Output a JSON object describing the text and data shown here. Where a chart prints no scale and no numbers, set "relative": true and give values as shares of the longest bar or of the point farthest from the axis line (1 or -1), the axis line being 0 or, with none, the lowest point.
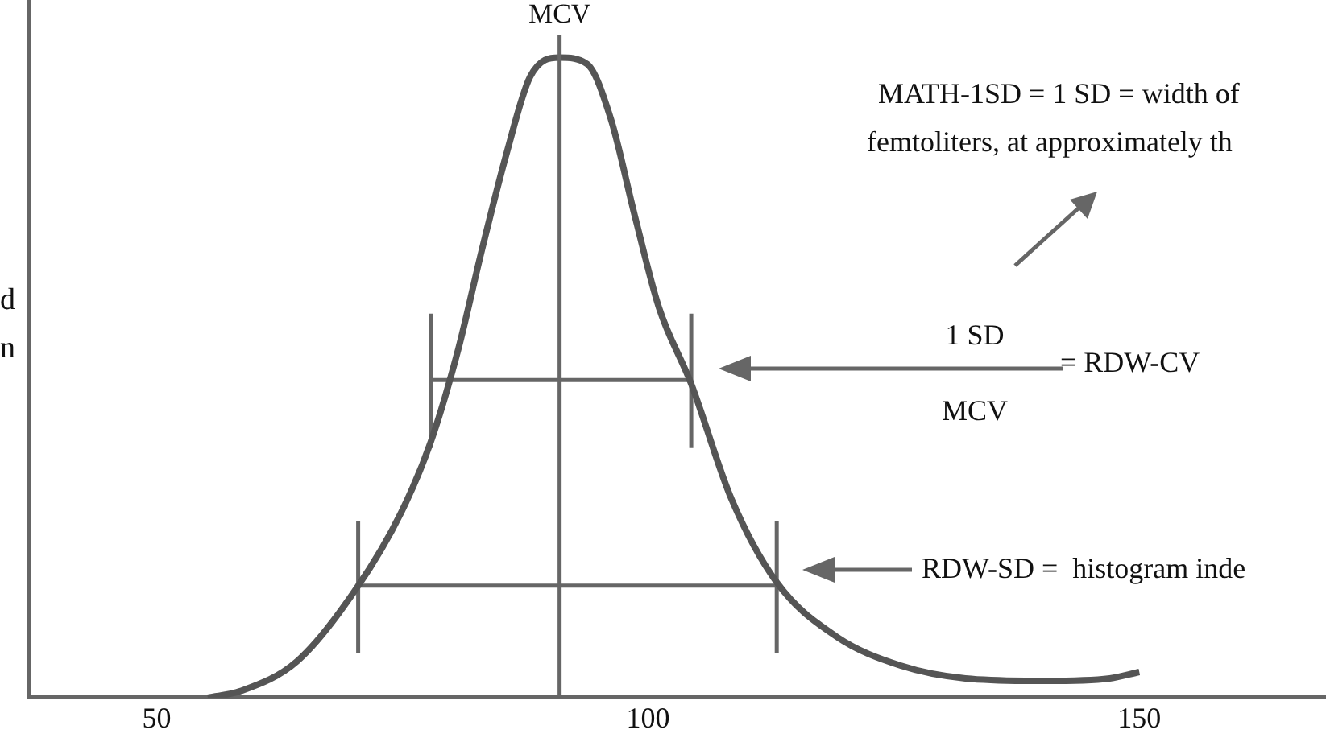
{
  "chart_data": {
    "type": "line",
    "relative": true,
    "ylabel": "d\nn",
    "xlim": [
      37,
      169
    ],
    "xticks": [
      50,
      100,
      150
    ],
    "grid": false,
    "legend": false,
    "marker": "none",
    "line_style": "solid",
    "series": [
      {
        "color": "#555555",
        "x": [
          55.2,
          58.5,
          64.3,
          70.3,
          74.9,
          77.9,
          80.7,
          83.1,
          85.6,
          88,
          91,
          93.8,
          96.2,
          98.7,
          101.1,
          104.4,
          108.5,
          113.1,
          119.2,
          125.7,
          132.3,
          140.5,
          147,
          150
        ],
        "values": [
          0,
          0.01,
          0.057,
          0.17,
          0.29,
          0.4,
          0.545,
          0.7,
          0.85,
          0.97,
          1,
          0.99,
          0.905,
          0.75,
          0.61,
          0.49,
          0.31,
          0.18,
          0.095,
          0.05,
          0.03,
          0.026,
          0.03,
          0.04
        ]
      },
      {
        "color": "#666666",
        "x": [
          77.9,
          104.4
        ],
        "values": [
          0.496,
          0.496
        ]
      },
      {
        "color": "#666666",
        "x": [
          77.9,
          77.9
        ],
        "values": [
          0.39,
          0.6
        ]
      },
      {
        "color": "#666666",
        "x": [
          104.4,
          104.4
        ],
        "values": [
          0.39,
          0.6
        ]
      },
      {
        "color": "#666666",
        "x": [
          70.5,
          113.1
        ],
        "values": [
          0.175,
          0.175
        ]
      },
      {
        "color": "#666666",
        "x": [
          70.5,
          70.5
        ],
        "values": [
          0.07,
          0.275
        ]
      },
      {
        "color": "#666666",
        "x": [
          113.1,
          113.1
        ],
        "values": [
          0.07,
          0.275
        ]
      }
    ],
    "ref_lines": [
      {
        "axis": "x",
        "value": 91,
        "label": "MCV",
        "color": "#666666"
      }
    ],
    "annotations": [
      "MATH-1SD = 1 SD = width of",
      "femtoliters, at approximately th",
      "1 SD",
      "MCV",
      "= RDW-CV",
      "RDW-SD =  histogram inde"
    ]
  }
}
